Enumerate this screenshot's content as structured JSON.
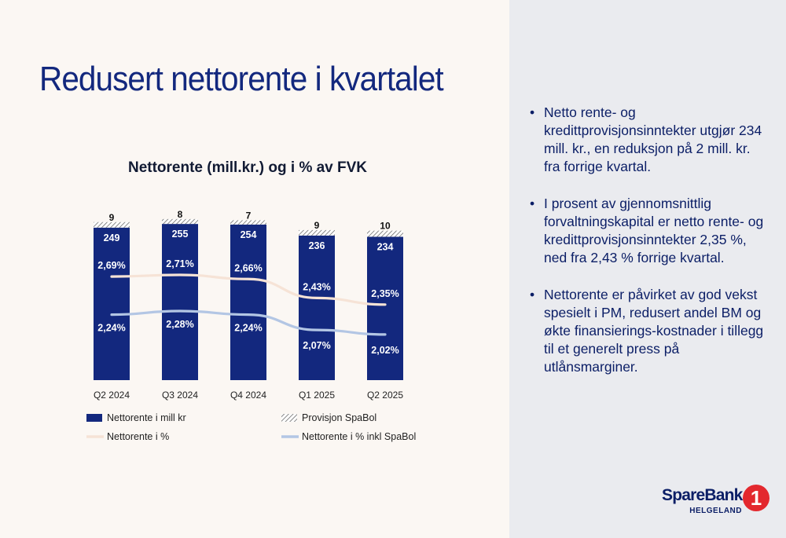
{
  "slide": {
    "title": "Redusert nettorente i kvartalet",
    "bullets": [
      "Netto rente- og kredittprovisjonsinntekter utgjør 234 mill. kr., en reduksjon på 2 mill. kr. fra forrige kvartal.",
      "I prosent av gjennomsnittlig forvaltningskapital er netto rente- og kredittprovisjonsinntekter 2,35 %, ned fra 2,43 % forrige kvartal.",
      "Nettorente er påvirket av god vekst spesielt i PM, redusert andel BM og økte finansierings-kostnader i tillegg til et generelt press på utlånsmarginer."
    ],
    "logo": {
      "name": "SpareBank",
      "sub": "HELGELAND",
      "mark": "1"
    }
  },
  "colors": {
    "bar": "#13287e",
    "hatch": "#6b6b6b",
    "line_pct": "#f6e3d6",
    "line_pct_inkl": "#b3c6e4"
  },
  "chart_data": {
    "type": "bar",
    "title": "Nettorente (mill.kr.) og i % av FVK",
    "categories": [
      "Q2 2024",
      "Q3 2024",
      "Q4 2024",
      "Q1 2025",
      "Q2 2025"
    ],
    "series": [
      {
        "name": "Nettorente i mill kr",
        "kind": "bar",
        "values": [
          249,
          255,
          254,
          236,
          234
        ],
        "labels": [
          "249",
          "255",
          "254",
          "236",
          "234"
        ]
      },
      {
        "name": "Provisjon SpaBol",
        "kind": "bar-stacked-hatched",
        "values": [
          9,
          8,
          7,
          9,
          10
        ],
        "labels": [
          "9",
          "8",
          "7",
          "9",
          "10"
        ]
      },
      {
        "name": "Nettorente i %",
        "kind": "line",
        "values": [
          2.69,
          2.71,
          2.66,
          2.43,
          2.35
        ],
        "labels": [
          "2,69%",
          "2,71%",
          "2,66%",
          "2,43%",
          "2,35%"
        ]
      },
      {
        "name": "Nettorente i % inkl SpaBol",
        "kind": "line",
        "values": [
          2.24,
          2.28,
          2.24,
          2.07,
          2.02
        ],
        "labels": [
          "2,24%",
          "2,28%",
          "2,24%",
          "2,07%",
          "2,02%"
        ]
      }
    ],
    "legend_position": "bottom",
    "grid": false
  }
}
